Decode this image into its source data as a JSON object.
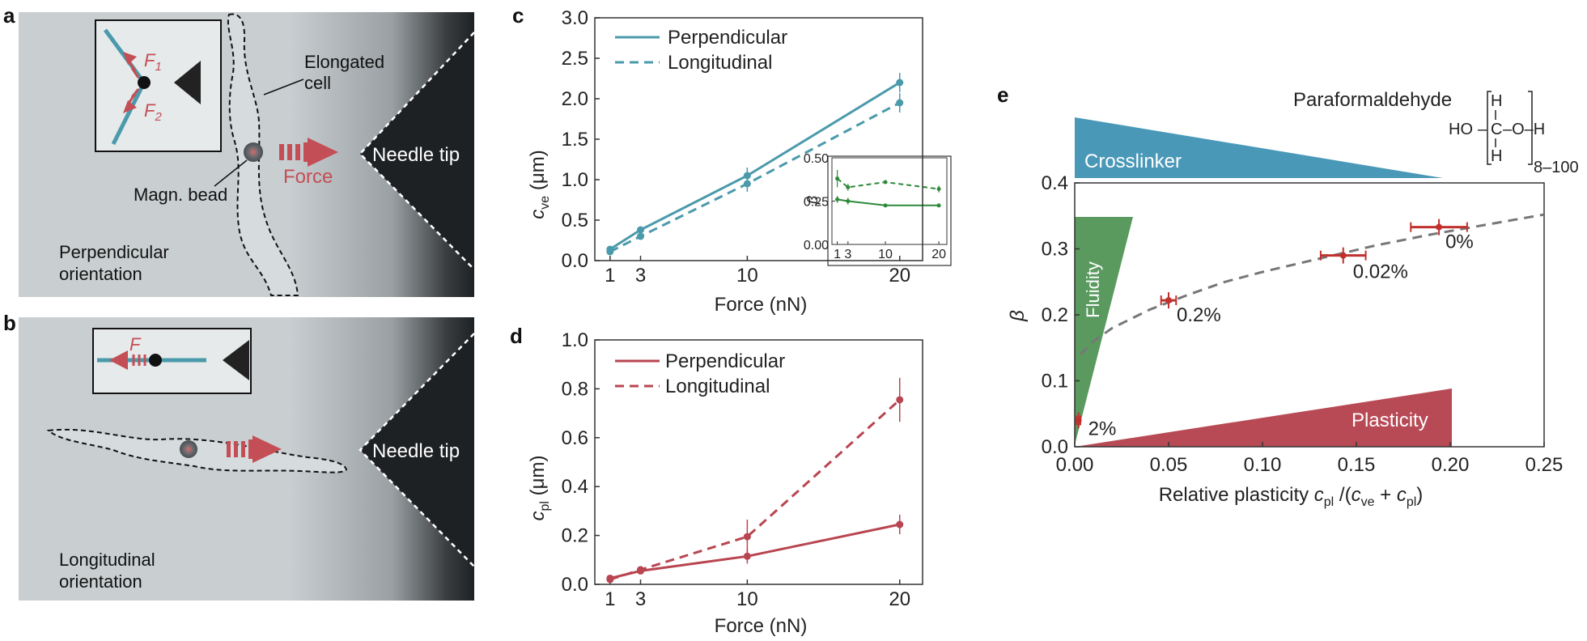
{
  "panels": {
    "a": {
      "letter": "a",
      "labels": {
        "elongated_1": "Elongated",
        "elongated_2": "cell",
        "force": "Force",
        "needle": "Needle tip",
        "bead": "Magn. bead",
        "orient_1": "Perpendicular",
        "orient_2": "orientation"
      },
      "inset": {
        "f1": "F",
        "f1_sub": "1",
        "f2": "F",
        "f2_sub": "2"
      }
    },
    "b": {
      "letter": "b",
      "labels": {
        "needle": "Needle tip",
        "orient_1": "Longitudinal",
        "orient_2": "orientation"
      },
      "inset": {
        "f": "F"
      }
    },
    "c": {
      "letter": "c"
    },
    "d": {
      "letter": "d"
    },
    "e": {
      "letter": "e",
      "labels": {
        "crosslinker": "Crosslinker",
        "fluidity": "Fluidity",
        "plasticity": "Plasticity",
        "paraformaldehyde": "Paraformaldehyde"
      },
      "formula": {
        "h_top": "H",
        "ho": "HO",
        "c": "C",
        "o_dash": "–O–H",
        "h_bottom": "H",
        "subscript": "8–100",
        "dash": "–"
      }
    }
  },
  "colors": {
    "perpendicular_c": "#4a9aab",
    "c_pl": "#b84550",
    "inset_beta": "#2d8a3a",
    "crosslinker": "#4a98b8",
    "fluidity": "#5a9a5f",
    "plasticity": "#b84a55",
    "points_e": "#c0312e",
    "fit_e": "#777777"
  },
  "chart_data": [
    {
      "panel": "c",
      "type": "line",
      "xlabel": "Force (nN)",
      "ylabel": "c",
      "ylabel_sub": "ve",
      "ylabel_unit": " (μm)",
      "xlim": [
        0,
        21.5
      ],
      "ylim": [
        0,
        3.0
      ],
      "xticks": [
        1,
        3,
        10,
        20
      ],
      "yticks": [
        0.0,
        0.5,
        1.0,
        1.5,
        2.0,
        2.5,
        3.0
      ],
      "x": [
        1,
        3,
        10,
        20
      ],
      "series": [
        {
          "name": "Perpendicular",
          "style": "solid",
          "values": [
            0.14,
            0.38,
            1.05,
            2.2
          ],
          "err": [
            0.03,
            0.03,
            0.1,
            0.12
          ]
        },
        {
          "name": "Longitudinal",
          "style": "dashed",
          "values": [
            0.11,
            0.3,
            0.95,
            1.95
          ],
          "err": [
            0.03,
            0.03,
            0.1,
            0.12
          ]
        }
      ],
      "legend": "top-left",
      "inset": {
        "ylabel": "β",
        "ylim": [
          0,
          0.5
        ],
        "yticks": [
          0.0,
          0.25,
          0.5
        ],
        "ytick_labels": [
          "0.00",
          "0.25",
          "0.50"
        ],
        "xticks": [
          1,
          3,
          10,
          20
        ],
        "x": [
          1,
          3,
          10,
          20
        ],
        "series": [
          {
            "style": "solid",
            "values": [
              0.26,
              0.25,
              0.225,
              0.225
            ],
            "err": [
              0.02,
              0.02,
              0.005,
              0.005
            ]
          },
          {
            "style": "dashed",
            "values": [
              0.38,
              0.33,
              0.36,
              0.32
            ],
            "err": [
              0.05,
              0.02,
              0.01,
              0.02
            ]
          }
        ]
      }
    },
    {
      "panel": "d",
      "type": "line",
      "xlabel": "Force (nN)",
      "ylabel": "c",
      "ylabel_sub": "pl",
      "ylabel_unit": " (μm)",
      "xlim": [
        0,
        21.5
      ],
      "ylim": [
        0,
        1.0
      ],
      "xticks": [
        1,
        3,
        10,
        20
      ],
      "yticks": [
        0.0,
        0.2,
        0.4,
        0.6,
        0.8,
        1.0
      ],
      "x": [
        1,
        3,
        10,
        20
      ],
      "series": [
        {
          "name": "Perpendicular",
          "style": "solid",
          "values": [
            0.025,
            0.055,
            0.115,
            0.245
          ],
          "err": [
            0.01,
            0.01,
            0.03,
            0.04
          ]
        },
        {
          "name": "Longitudinal",
          "style": "dashed",
          "values": [
            0.02,
            0.06,
            0.195,
            0.755
          ],
          "err": [
            0.01,
            0.01,
            0.07,
            0.09
          ]
        }
      ],
      "legend": "top-left"
    },
    {
      "panel": "e",
      "type": "scatter",
      "xlabel": "Relative plasticity ",
      "xlabel_c": "c",
      "xlabel_pl": "pl",
      "xlabel_mid": " /(",
      "xlabel_ve": "ve",
      "xlabel_plus": " + ",
      "xlabel_end": ")",
      "ylabel": "β",
      "xlim": [
        0,
        0.25
      ],
      "ylim": [
        0,
        0.4
      ],
      "xticks": [
        0.0,
        0.05,
        0.1,
        0.15,
        0.2,
        0.25
      ],
      "xtick_labels": [
        "0.00",
        "0.05",
        "0.10",
        "0.15",
        "0.20",
        "0.25"
      ],
      "yticks": [
        0.0,
        0.1,
        0.2,
        0.3,
        0.4
      ],
      "points": [
        {
          "label": "2%",
          "x": 0.002,
          "y": 0.04,
          "xerr": 0.001
        },
        {
          "label": "0.2%",
          "x": 0.05,
          "y": 0.222,
          "xerr": 0.004
        },
        {
          "label": "0.02%",
          "x": 0.143,
          "y": 0.29,
          "xerr": 0.012
        },
        {
          "label": "0%",
          "x": 0.194,
          "y": 0.333,
          "xerr": 0.015
        }
      ],
      "fit": {
        "x": [
          0.003,
          0.01,
          0.02,
          0.04,
          0.06,
          0.08,
          0.1,
          0.13,
          0.16,
          0.19,
          0.22,
          0.25
        ],
        "y": [
          0.14,
          0.16,
          0.18,
          0.208,
          0.23,
          0.25,
          0.265,
          0.285,
          0.305,
          0.322,
          0.337,
          0.352
        ]
      }
    }
  ]
}
